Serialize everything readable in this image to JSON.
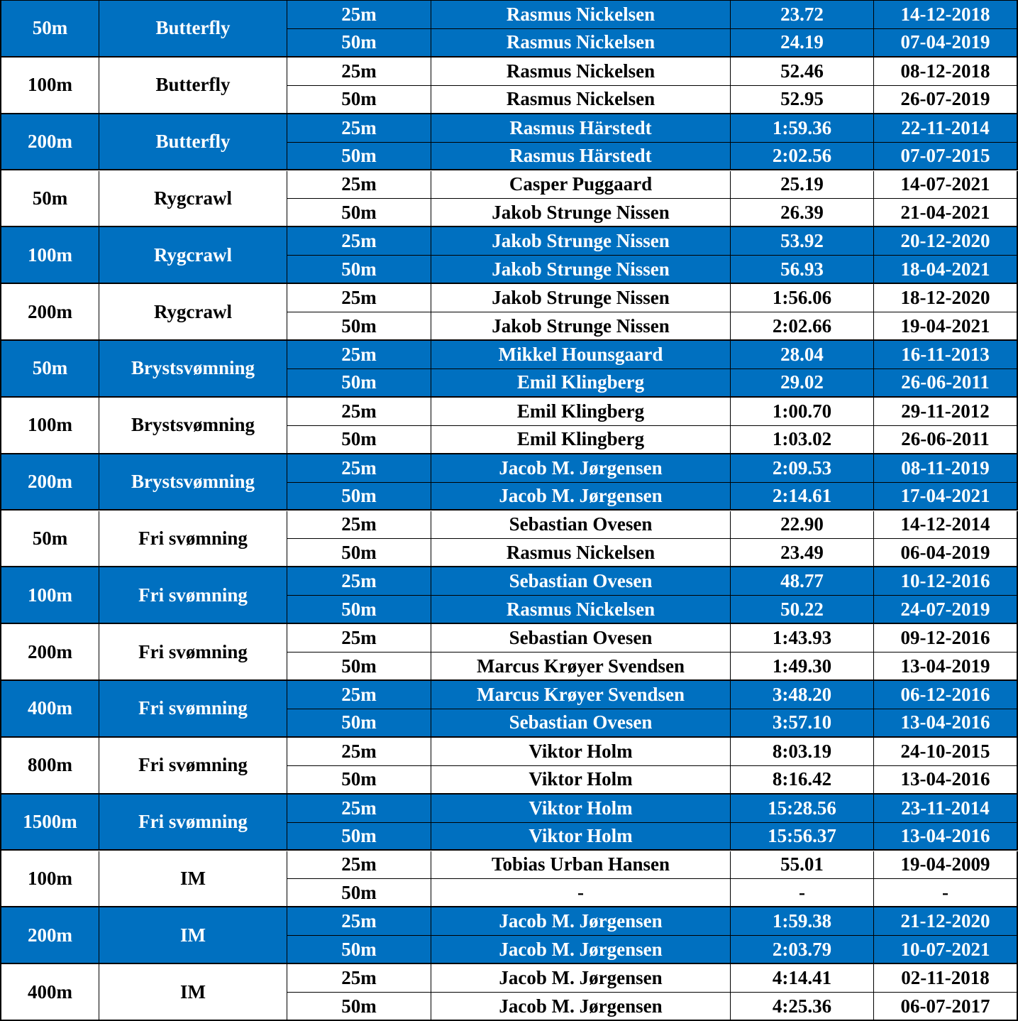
{
  "table": {
    "groups": [
      {
        "distance": "50m",
        "stroke": "Butterfly",
        "rows": [
          {
            "pool": "25m",
            "name": "Rasmus Nickelsen",
            "time": "23.72",
            "date": "14-12-2018"
          },
          {
            "pool": "50m",
            "name": "Rasmus Nickelsen",
            "time": "24.19",
            "date": "07-04-2019"
          }
        ]
      },
      {
        "distance": "100m",
        "stroke": "Butterfly",
        "rows": [
          {
            "pool": "25m",
            "name": "Rasmus Nickelsen",
            "time": "52.46",
            "date": "08-12-2018"
          },
          {
            "pool": "50m",
            "name": "Rasmus Nickelsen",
            "time": "52.95",
            "date": "26-07-2019"
          }
        ]
      },
      {
        "distance": "200m",
        "stroke": "Butterfly",
        "rows": [
          {
            "pool": "25m",
            "name": "Rasmus Härstedt",
            "time": "1:59.36",
            "date": "22-11-2014"
          },
          {
            "pool": "50m",
            "name": "Rasmus Härstedt",
            "time": "2:02.56",
            "date": "07-07-2015"
          }
        ]
      },
      {
        "distance": "50m",
        "stroke": "Rygcrawl",
        "rows": [
          {
            "pool": "25m",
            "name": "Casper Puggaard",
            "time": "25.19",
            "date": "14-07-2021"
          },
          {
            "pool": "50m",
            "name": "Jakob Strunge Nissen",
            "time": "26.39",
            "date": "21-04-2021"
          }
        ]
      },
      {
        "distance": "100m",
        "stroke": "Rygcrawl",
        "rows": [
          {
            "pool": "25m",
            "name": "Jakob Strunge Nissen",
            "time": "53.92",
            "date": "20-12-2020"
          },
          {
            "pool": "50m",
            "name": "Jakob Strunge Nissen",
            "time": "56.93",
            "date": "18-04-2021"
          }
        ]
      },
      {
        "distance": "200m",
        "stroke": "Rygcrawl",
        "rows": [
          {
            "pool": "25m",
            "name": "Jakob Strunge Nissen",
            "time": "1:56.06",
            "date": "18-12-2020"
          },
          {
            "pool": "50m",
            "name": "Jakob Strunge Nissen",
            "time": "2:02.66",
            "date": "19-04-2021"
          }
        ]
      },
      {
        "distance": "50m",
        "stroke": "Brystsvømning",
        "rows": [
          {
            "pool": "25m",
            "name": "Mikkel Hounsgaard",
            "time": "28.04",
            "date": "16-11-2013"
          },
          {
            "pool": "50m",
            "name": "Emil Klingberg",
            "time": "29.02",
            "date": "26-06-2011"
          }
        ]
      },
      {
        "distance": "100m",
        "stroke": "Brystsvømning",
        "rows": [
          {
            "pool": "25m",
            "name": "Emil Klingberg",
            "time": "1:00.70",
            "date": "29-11-2012"
          },
          {
            "pool": "50m",
            "name": "Emil Klingberg",
            "time": "1:03.02",
            "date": "26-06-2011"
          }
        ]
      },
      {
        "distance": "200m",
        "stroke": "Brystsvømning",
        "rows": [
          {
            "pool": "25m",
            "name": "Jacob M. Jørgensen",
            "time": "2:09.53",
            "date": "08-11-2019"
          },
          {
            "pool": "50m",
            "name": "Jacob M. Jørgensen",
            "time": "2:14.61",
            "date": "17-04-2021"
          }
        ]
      },
      {
        "distance": "50m",
        "stroke": "Fri svømning",
        "rows": [
          {
            "pool": "25m",
            "name": "Sebastian Ovesen",
            "time": "22.90",
            "date": "14-12-2014"
          },
          {
            "pool": "50m",
            "name": "Rasmus Nickelsen",
            "time": "23.49",
            "date": "06-04-2019"
          }
        ]
      },
      {
        "distance": "100m",
        "stroke": "Fri svømning",
        "rows": [
          {
            "pool": "25m",
            "name": "Sebastian Ovesen",
            "time": "48.77",
            "date": "10-12-2016"
          },
          {
            "pool": "50m",
            "name": "Rasmus Nickelsen",
            "time": "50.22",
            "date": "24-07-2019"
          }
        ]
      },
      {
        "distance": "200m",
        "stroke": "Fri svømning",
        "rows": [
          {
            "pool": "25m",
            "name": "Sebastian Ovesen",
            "time": "1:43.93",
            "date": "09-12-2016"
          },
          {
            "pool": "50m",
            "name": "Marcus Krøyer Svendsen",
            "time": "1:49.30",
            "date": "13-04-2019"
          }
        ]
      },
      {
        "distance": "400m",
        "stroke": "Fri svømning",
        "rows": [
          {
            "pool": "25m",
            "name": "Marcus Krøyer Svendsen",
            "time": "3:48.20",
            "date": "06-12-2016"
          },
          {
            "pool": "50m",
            "name": "Sebastian Ovesen",
            "time": "3:57.10",
            "date": "13-04-2016"
          }
        ]
      },
      {
        "distance": "800m",
        "stroke": "Fri svømning",
        "rows": [
          {
            "pool": "25m",
            "name": "Viktor Holm",
            "time": "8:03.19",
            "date": "24-10-2015"
          },
          {
            "pool": "50m",
            "name": "Viktor Holm",
            "time": "8:16.42",
            "date": "13-04-2016"
          }
        ]
      },
      {
        "distance": "1500m",
        "stroke": "Fri svømning",
        "rows": [
          {
            "pool": "25m",
            "name": "Viktor Holm",
            "time": "15:28.56",
            "date": "23-11-2014"
          },
          {
            "pool": "50m",
            "name": "Viktor Holm",
            "time": "15:56.37",
            "date": "13-04-2016"
          }
        ]
      },
      {
        "distance": "100m",
        "stroke": "IM",
        "rows": [
          {
            "pool": "25m",
            "name": "Tobias Urban Hansen",
            "time": "55.01",
            "date": "19-04-2009"
          },
          {
            "pool": "50m",
            "name": "-",
            "time": "-",
            "date": "-"
          }
        ]
      },
      {
        "distance": "200m",
        "stroke": "IM",
        "rows": [
          {
            "pool": "25m",
            "name": "Jacob M. Jørgensen",
            "time": "1:59.38",
            "date": "21-12-2020"
          },
          {
            "pool": "50m",
            "name": "Jacob M. Jørgensen",
            "time": "2:03.79",
            "date": "10-07-2021"
          }
        ]
      },
      {
        "distance": "400m",
        "stroke": "IM",
        "rows": [
          {
            "pool": "25m",
            "name": "Jacob M. Jørgensen",
            "time": "4:14.41",
            "date": "02-11-2018"
          },
          {
            "pool": "50m",
            "name": "Jacob M. Jørgensen",
            "time": "4:25.36",
            "date": "06-07-2017"
          }
        ]
      }
    ]
  }
}
